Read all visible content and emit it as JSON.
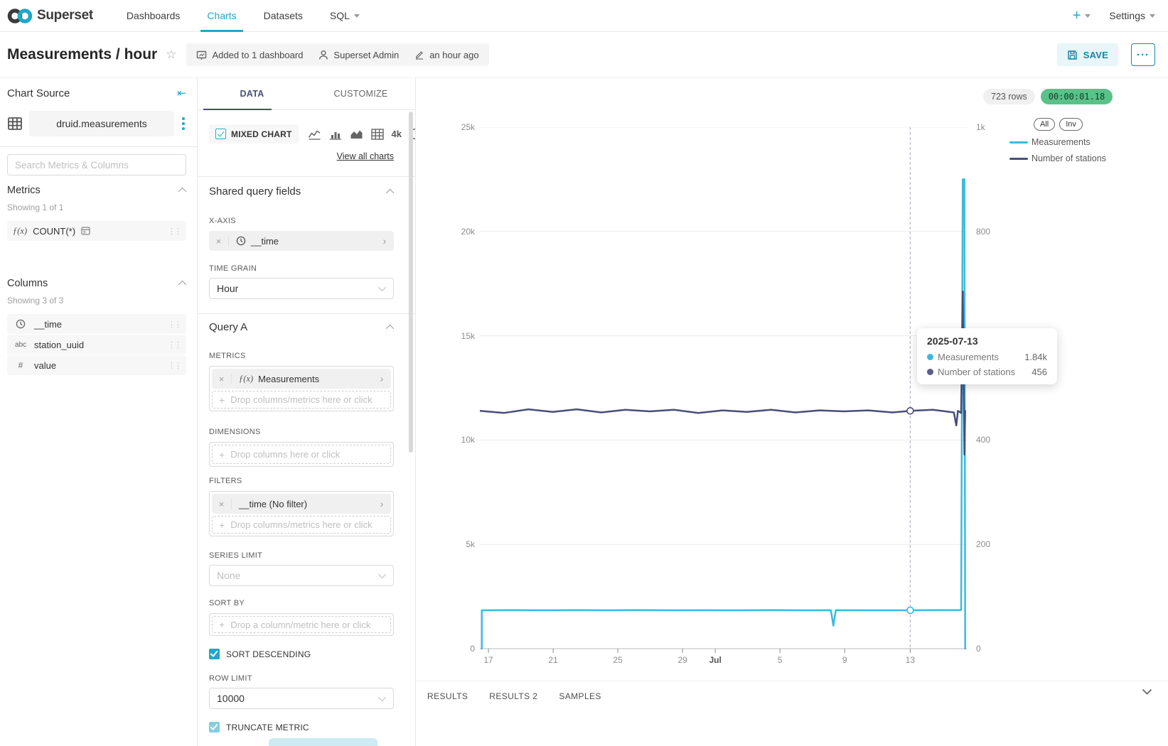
{
  "navbar": {
    "brand": "Superset",
    "items": [
      {
        "label": "Dashboards"
      },
      {
        "label": "Charts"
      },
      {
        "label": "Datasets"
      },
      {
        "label": "SQL"
      }
    ],
    "plus_label": "+",
    "settings_label": "Settings"
  },
  "header": {
    "title": "Measurements / hour",
    "meta": {
      "dashboard": "Added to 1 dashboard",
      "owner": "Superset Admin",
      "modified": "an hour ago"
    },
    "save_label": "SAVE",
    "more_label": "···"
  },
  "chart_source": {
    "panel_title": "Chart Source",
    "dataset": "druid.measurements",
    "search_placeholder": "Search Metrics & Columns",
    "metrics_title": "Metrics",
    "metrics_count": "Showing 1 of 1",
    "metric_items": [
      {
        "name": "COUNT(*)"
      }
    ],
    "columns_title": "Columns",
    "columns_count": "Showing 3 of 3",
    "column_items": [
      {
        "name": "__time",
        "type": "time"
      },
      {
        "name": "station_uuid",
        "type": "text"
      },
      {
        "name": "value",
        "type": "numeric"
      }
    ]
  },
  "icons": {
    "function_glyph": "ƒ(x)",
    "text_type_glyph": "abc",
    "numeric_type_glyph": "#",
    "big_number_glyph": "4k"
  },
  "controls": {
    "tabs": [
      {
        "label": "DATA"
      },
      {
        "label": "CUSTOMIZE"
      }
    ],
    "viz_type": {
      "selected": "MIXED CHART",
      "view_all": "View all charts"
    },
    "shared": {
      "title": "Shared query fields",
      "x_axis_label": "X-AXIS",
      "x_axis_value": "__time",
      "time_grain_label": "TIME GRAIN",
      "time_grain_value": "Hour"
    },
    "query_a": {
      "title": "Query A",
      "metrics_label": "METRICS",
      "metric_value": "Measurements",
      "metrics_drop": "Drop columns/metrics here or click",
      "dimensions_label": "DIMENSIONS",
      "dimensions_drop": "Drop columns here or click",
      "filters_label": "FILTERS",
      "filter_value": "__time (No filter)",
      "filters_drop": "Drop columns/metrics here or click",
      "series_limit_label": "SERIES LIMIT",
      "series_limit_value": "None",
      "sort_by_label": "SORT BY",
      "sort_by_drop": "Drop a column/metric here or click",
      "sort_descending_label": "SORT DESCENDING",
      "row_limit_label": "ROW LIMIT",
      "row_limit_value": "10000",
      "truncate_label": "TRUNCATE METRIC"
    }
  },
  "chart": {
    "rows_badge": "723 rows",
    "timer_badge": "00:00:01.18",
    "legend_buttons": {
      "all": "All",
      "inv": "Inv"
    },
    "tooltip": {
      "title": "2025-07-13",
      "rows": [
        {
          "name": "Measurements",
          "value": "1.84k"
        },
        {
          "name": "Number of stations",
          "value": "456"
        }
      ]
    }
  },
  "results": {
    "tabs": [
      {
        "label": "RESULTS"
      },
      {
        "label": "RESULTS 2"
      },
      {
        "label": "SAMPLES"
      }
    ]
  },
  "colors": {
    "accent": "#20A7C9",
    "timer_green": "#5AC189",
    "measurements": "#3CB9DF",
    "stations": "#484E7B"
  },
  "chart_data": {
    "type": "line",
    "title": "Measurements / hour",
    "x_axis": {
      "note": "d = days since 2025-06-16 ~11:00, hourly data Jun 17 - Jul 16",
      "domain": [
        0,
        30.1
      ],
      "ticks": [
        {
          "d": 0.53,
          "label": "17"
        },
        {
          "d": 4.53,
          "label": "21"
        },
        {
          "d": 8.53,
          "label": "25"
        },
        {
          "d": 12.53,
          "label": "29"
        },
        {
          "d": 14.55,
          "label": "Jul",
          "bold": true
        },
        {
          "d": 18.55,
          "label": "5"
        },
        {
          "d": 22.55,
          "label": "9"
        },
        {
          "d": 26.6,
          "label": "13"
        }
      ]
    },
    "y_left": {
      "ticks": [
        "25k",
        "20k",
        "15k",
        "10k",
        "5k",
        "0"
      ],
      "range": [
        0,
        25000
      ]
    },
    "y_right": {
      "ticks": [
        "1k",
        "800",
        "600",
        "400",
        "200",
        "0"
      ],
      "range": [
        0,
        1000
      ]
    },
    "grid": true,
    "legend_position": "top-right",
    "series": [
      {
        "name": "Measurements",
        "axis": "left",
        "color": "#3CB9DF",
        "points": [
          [
            0.12,
            0
          ],
          [
            0.12,
            1840
          ],
          [
            2,
            1848
          ],
          [
            4,
            1838
          ],
          [
            6,
            1846
          ],
          [
            8,
            1840
          ],
          [
            10,
            1848
          ],
          [
            12,
            1838
          ],
          [
            14,
            1844
          ],
          [
            16,
            1840
          ],
          [
            18,
            1847
          ],
          [
            20,
            1840
          ],
          [
            21.7,
            1843
          ],
          [
            21.85,
            1100
          ],
          [
            22.0,
            1843
          ],
          [
            24,
            1840
          ],
          [
            26.6,
            1840
          ],
          [
            28,
            1845
          ],
          [
            29.75,
            1852
          ],
          [
            29.85,
            22500
          ],
          [
            29.95,
            22500
          ],
          [
            30.0,
            0
          ]
        ]
      },
      {
        "name": "Number of stations",
        "axis": "right",
        "color": "#484E7B",
        "points": [
          [
            0,
            456
          ],
          [
            1.5,
            452
          ],
          [
            3,
            459
          ],
          [
            4.5,
            454
          ],
          [
            6,
            459
          ],
          [
            7.5,
            453
          ],
          [
            9,
            458
          ],
          [
            10.5,
            455
          ],
          [
            12,
            458
          ],
          [
            13.5,
            452
          ],
          [
            15,
            457
          ],
          [
            16.5,
            454
          ],
          [
            18,
            458
          ],
          [
            19.5,
            453
          ],
          [
            21,
            457
          ],
          [
            22.5,
            455
          ],
          [
            24,
            457
          ],
          [
            25.5,
            453
          ],
          [
            26.6,
            456
          ],
          [
            28,
            458
          ],
          [
            29.3,
            453
          ],
          [
            29.45,
            428
          ],
          [
            29.55,
            456
          ],
          [
            29.75,
            452
          ],
          [
            29.85,
            685
          ],
          [
            29.95,
            372
          ],
          [
            30.0,
            456
          ]
        ]
      }
    ],
    "hover": {
      "d": 26.6,
      "label": "2025-07-13",
      "values": {
        "Measurements": 1840,
        "Number of stations": 456
      }
    }
  }
}
